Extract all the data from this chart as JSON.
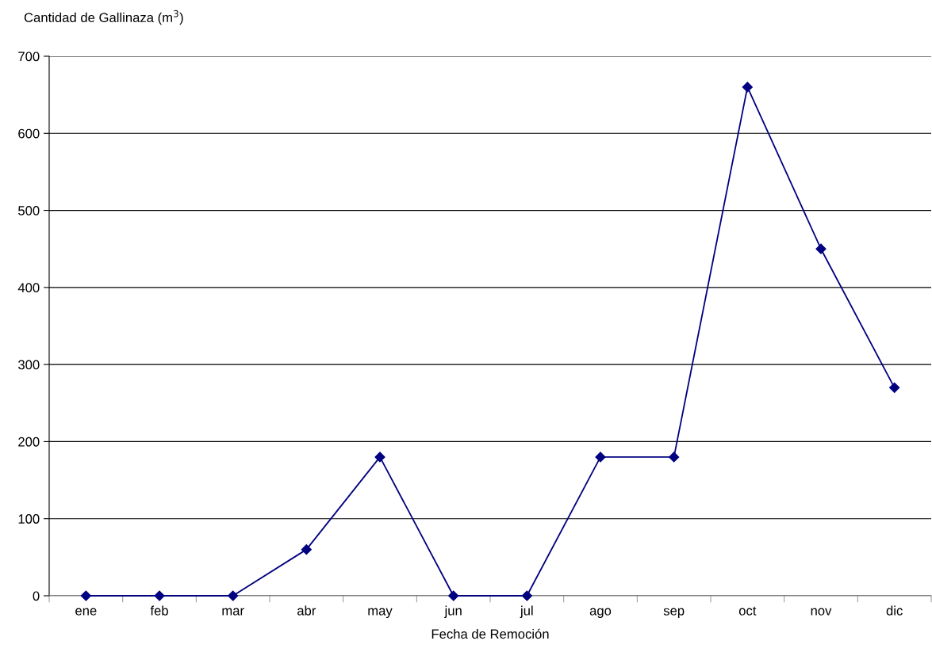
{
  "chart_data": {
    "type": "line",
    "ylabel": "Cantidad de Gallinaza (m$^{3}$)",
    "xlabel": "Fecha de Remoción",
    "categories": [
      "ene",
      "feb",
      "mar",
      "abr",
      "may",
      "jun",
      "jul",
      "ago",
      "sep",
      "oct",
      "nov",
      "dic"
    ],
    "series": [
      {
        "color": "#000080",
        "values": [
          0,
          0,
          0,
          60,
          180,
          0,
          0,
          180,
          180,
          660,
          450,
          270
        ]
      }
    ],
    "ylim": [
      0,
      700
    ],
    "yticks": [
      0,
      100,
      200,
      300,
      400,
      500,
      600,
      700
    ],
    "grid": "y",
    "marker": "diamond",
    "line_style": "solid",
    "legend": false
  }
}
